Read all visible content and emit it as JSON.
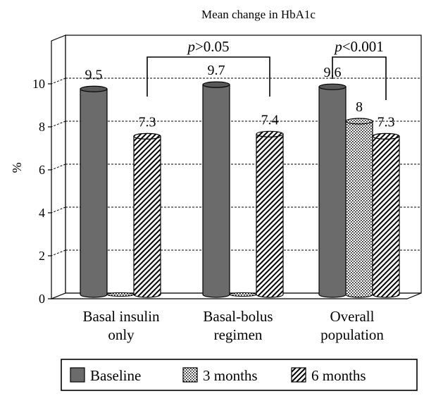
{
  "chart_data": {
    "type": "bar",
    "title": "Mean change in HbA1c",
    "ylabel": "%",
    "xlabel": "",
    "ylim": [
      0,
      12
    ],
    "yticks": [
      0,
      2,
      4,
      6,
      8,
      10
    ],
    "grid": true,
    "gridstyle": "dashed",
    "legend_position": "bottom",
    "categories": [
      [
        "Basal insulin",
        "only"
      ],
      [
        "Basal-bolus",
        "regimen"
      ],
      [
        "Overall",
        "population"
      ]
    ],
    "series": [
      {
        "name": "Baseline",
        "pattern": "solid",
        "color": "#6b6b6b",
        "values": [
          9.5,
          9.7,
          9.6
        ],
        "labels": [
          "9.5",
          "9.7",
          "9.6"
        ]
      },
      {
        "name": "3 months",
        "pattern": "dots",
        "color": "#ffffff",
        "values": [
          0,
          0,
          8
        ],
        "labels": [
          null,
          null,
          "8"
        ]
      },
      {
        "name": "6 months",
        "pattern": "diagonal",
        "color": "#ffffff",
        "values": [
          7.3,
          7.4,
          7.3
        ],
        "labels": [
          "7.3",
          "7.4",
          "7.3"
        ]
      }
    ],
    "annotations": [
      {
        "text_italic": "p",
        "text": ">0.05",
        "from": {
          "category": 0,
          "series": 2
        },
        "to": {
          "category": 1,
          "series": 2
        }
      },
      {
        "text_italic": "p",
        "text": "<0.001",
        "from": {
          "category": 2,
          "series": 0
        },
        "to": {
          "category": 2,
          "series": 2
        }
      }
    ]
  }
}
